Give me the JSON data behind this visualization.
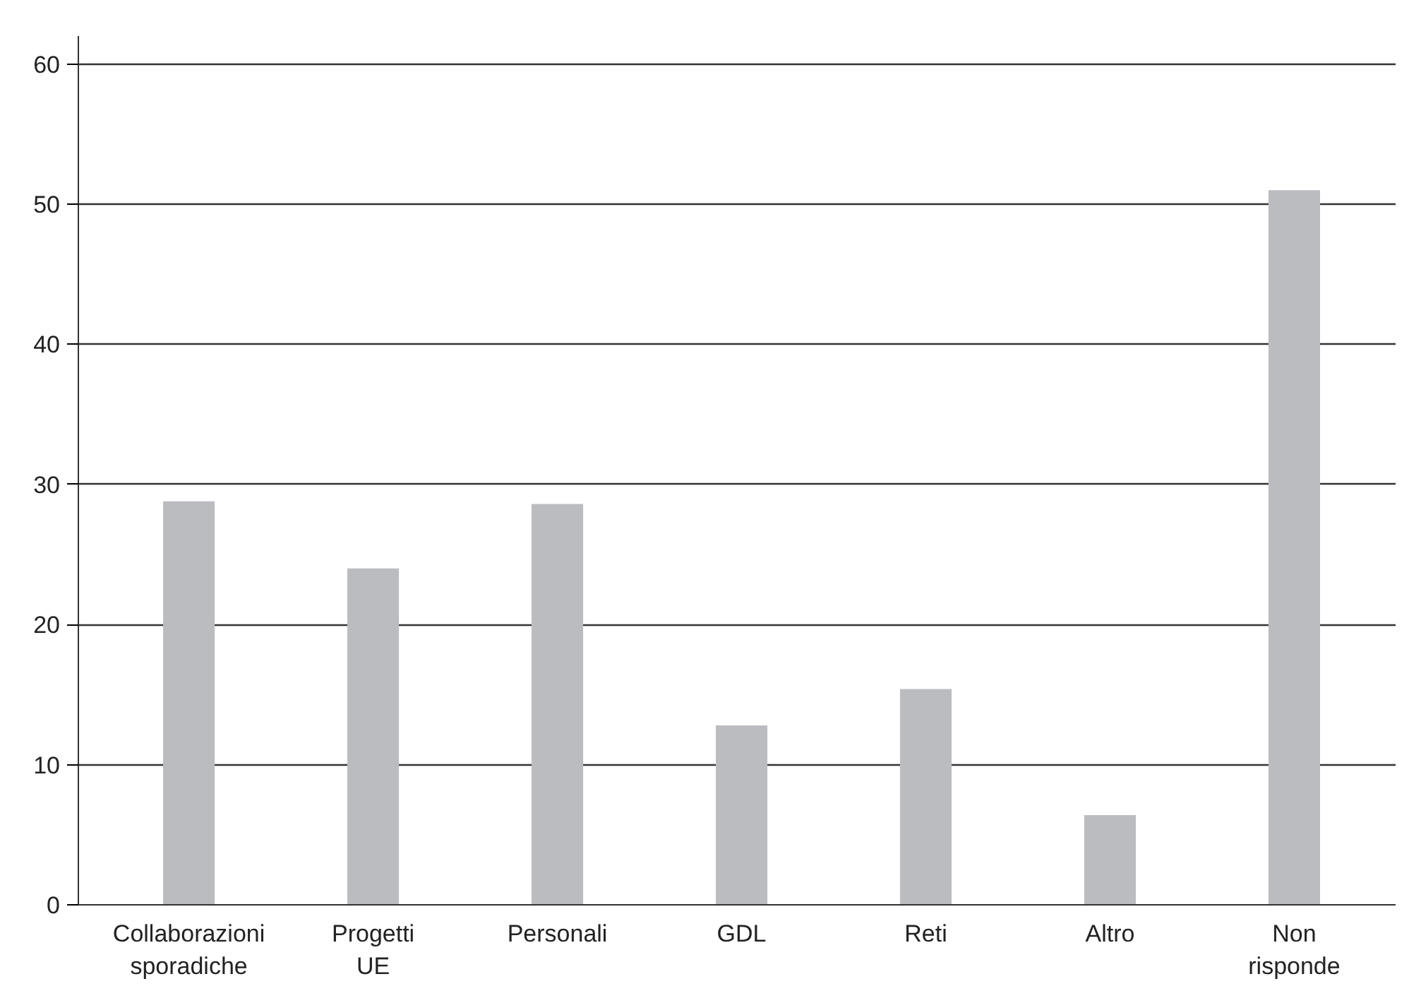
{
  "chart_data": {
    "type": "bar",
    "categories": [
      "Collaborazioni\nsporadiche",
      "Progetti\nUE",
      "Personali",
      "GDL",
      "Reti",
      "Altro",
      "Non\nrisponde"
    ],
    "values": [
      28.8,
      24.0,
      28.6,
      12.8,
      15.4,
      6.4,
      51.0
    ],
    "color": "#bbbcc0",
    "ylim": [
      0,
      62
    ],
    "yticks": [
      0,
      10,
      20,
      30,
      40,
      50,
      60
    ],
    "grid": "y"
  }
}
